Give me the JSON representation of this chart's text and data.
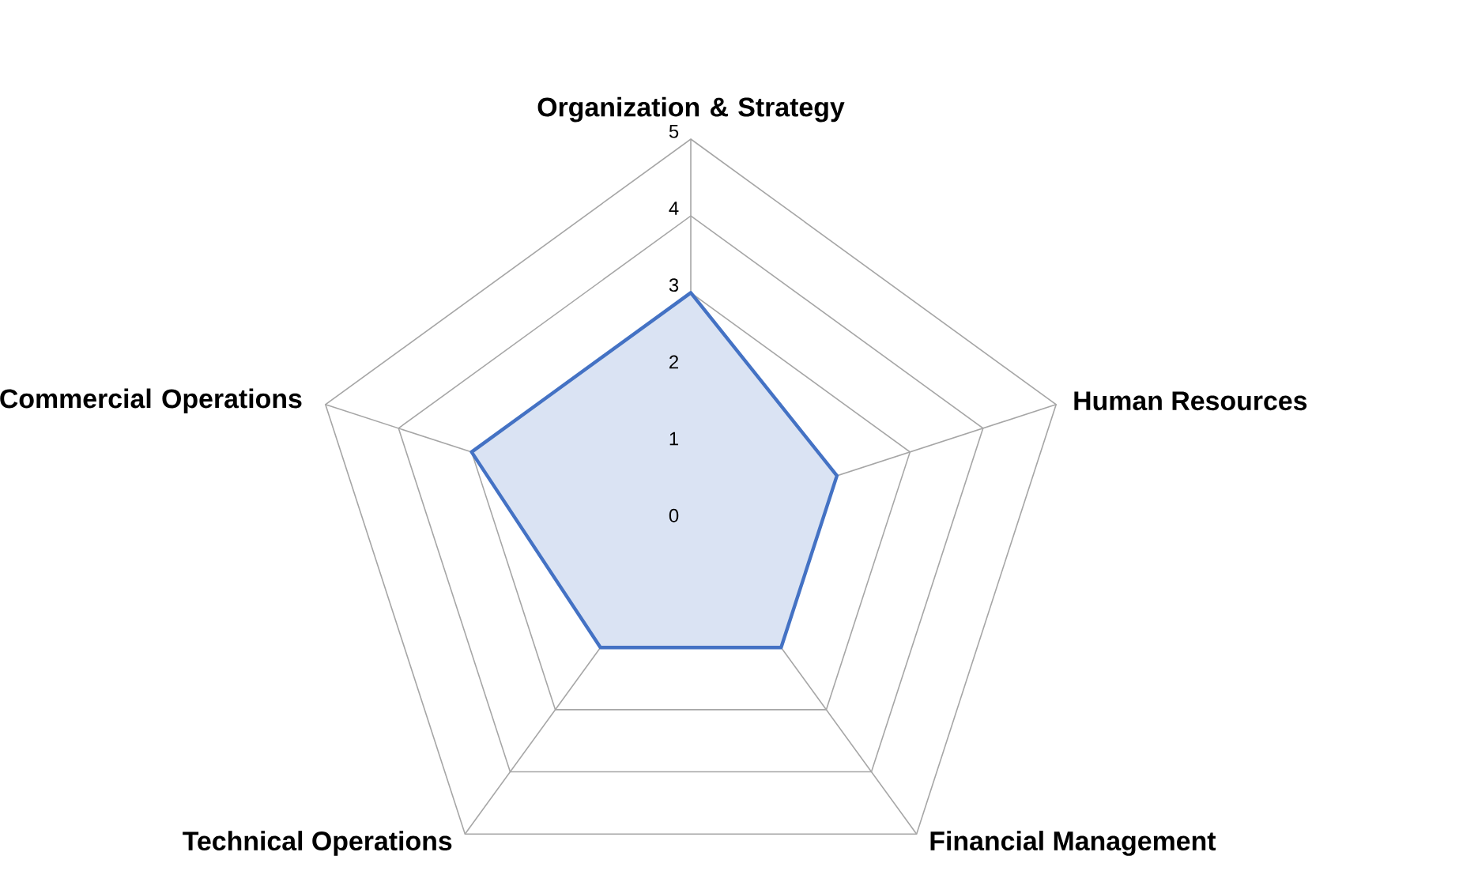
{
  "chart_data": {
    "type": "radar",
    "categories": [
      "Organization & Strategy",
      "Human Resources",
      "Financial Management",
      "Technical Operations",
      "Commercial Operations"
    ],
    "series": [
      {
        "color": "#4472c4",
        "values": [
          3,
          2,
          2,
          2,
          3
        ]
      }
    ],
    "ylim": [
      0,
      5
    ],
    "yticks": [
      0,
      1,
      2,
      3,
      4,
      5
    ],
    "grid": true
  }
}
